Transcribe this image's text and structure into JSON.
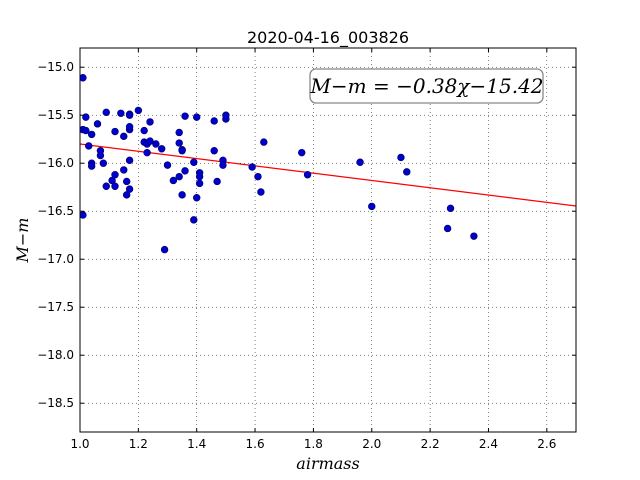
{
  "chart_data": {
    "type": "scatter",
    "title": "2020-04-16_003826",
    "xlabel": "airmass",
    "ylabel": "M−m",
    "xlim": [
      1.0,
      2.7
    ],
    "ylim": [
      -18.8,
      -14.8
    ],
    "y_inverted": true,
    "grid": true,
    "x_ticks": [
      1.0,
      1.2,
      1.4,
      1.6,
      1.8,
      2.0,
      2.2,
      2.4,
      2.6
    ],
    "x_tick_labels": [
      "1.0",
      "1.2",
      "1.4",
      "1.6",
      "1.8",
      "2.0",
      "2.2",
      "2.4",
      "2.6"
    ],
    "y_ticks": [
      -15.0,
      -15.5,
      -16.0,
      -16.5,
      -17.0,
      -17.5,
      -18.0,
      -18.5
    ],
    "y_tick_labels": [
      "−15.0",
      "−15.5",
      "−16.0",
      "−16.5",
      "−17.0",
      "−17.5",
      "−18.0",
      "−18.5"
    ],
    "annotation": "M−m = −0.38χ−15.42",
    "colors": {
      "points": "#0000cc",
      "fit_line": "#ff0000"
    },
    "fit_line": {
      "slope": -0.38,
      "intercept": -15.42
    },
    "series": [
      {
        "x": [
          1.01,
          1.01,
          1.01,
          1.02,
          1.02,
          1.03,
          1.04,
          1.04,
          1.04,
          1.06,
          1.07,
          1.07,
          1.08,
          1.09,
          1.09,
          1.11,
          1.12,
          1.12,
          1.12,
          1.14,
          1.15,
          1.15,
          1.16,
          1.16,
          1.17,
          1.17,
          1.17,
          1.17,
          1.17,
          1.17,
          1.2,
          1.22,
          1.22,
          1.23,
          1.23,
          1.24,
          1.24,
          1.26,
          1.28,
          1.29,
          1.3,
          1.32,
          1.34,
          1.34,
          1.34,
          1.35,
          1.35,
          1.35,
          1.36,
          1.36,
          1.39,
          1.39,
          1.4,
          1.4,
          1.41,
          1.41,
          1.41,
          1.46,
          1.46,
          1.47,
          1.49,
          1.49,
          1.5,
          1.5,
          1.59,
          1.61,
          1.62,
          1.63,
          1.76,
          1.78,
          1.96,
          2.0,
          2.1,
          2.12,
          2.26,
          2.27,
          2.35
        ],
        "y": [
          -15.11,
          -15.65,
          -16.54,
          -15.52,
          -15.66,
          -15.82,
          -15.7,
          -16.0,
          -16.03,
          -15.59,
          -15.87,
          -15.92,
          -16.0,
          -15.47,
          -16.24,
          -16.18,
          -16.12,
          -16.24,
          -15.67,
          -15.48,
          -16.07,
          -15.72,
          -16.19,
          -16.33,
          -16.27,
          -15.97,
          -15.65,
          -15.62,
          -15.49,
          -15.5,
          -15.45,
          -15.66,
          -15.78,
          -15.8,
          -15.89,
          -15.77,
          -15.57,
          -15.8,
          -15.85,
          -16.9,
          -16.02,
          -16.18,
          -15.68,
          -15.79,
          -16.14,
          -16.33,
          -15.86,
          -15.87,
          -15.51,
          -16.08,
          -16.59,
          -15.99,
          -16.36,
          -15.52,
          -16.1,
          -16.14,
          -16.21,
          -15.87,
          -15.56,
          -16.19,
          -15.97,
          -16.02,
          -15.54,
          -15.5,
          -16.04,
          -16.14,
          -16.3,
          -15.78,
          -15.89,
          -16.12,
          -15.99,
          -16.45,
          -15.94,
          -16.09,
          -16.68,
          -16.47,
          -16.76
        ]
      }
    ]
  }
}
